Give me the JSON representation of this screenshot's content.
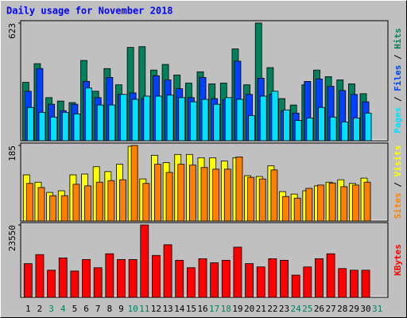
{
  "chart_data": [
    {
      "type": "bar",
      "title": "Daily usage for November 2018",
      "ylim": [
        0,
        623
      ],
      "yticks": [
        623
      ],
      "legend_separator": " / ",
      "series": [
        {
          "name": "Hits",
          "color": "#00805c",
          "values": [
            309,
            408,
            228,
            210,
            202,
            425,
            262,
            382,
            296,
            494,
            498,
            374,
            404,
            348,
            305,
            365,
            301,
            305,
            486,
            296,
            623,
            387,
            223,
            189,
            296,
            374,
            339,
            322,
            301,
            249,
            null
          ]
        },
        {
          "name": "Files",
          "color": "#0040ff",
          "values": [
            262,
            382,
            193,
            159,
            193,
            314,
            228,
            335,
            245,
            253,
            223,
            344,
            322,
            275,
            228,
            335,
            223,
            219,
            421,
            245,
            331,
            245,
            159,
            146,
            314,
            327,
            288,
            266,
            245,
            206,
            null
          ]
        },
        {
          "name": "Pages",
          "color": "#00e0ff",
          "values": [
            176,
            150,
            125,
            150,
            142,
            279,
            189,
            189,
            245,
            219,
            236,
            236,
            241,
            228,
            206,
            219,
            193,
            228,
            219,
            133,
            236,
            262,
            163,
            107,
            120,
            176,
            125,
            99,
            120,
            146,
            null
          ]
        }
      ]
    },
    {
      "type": "bar",
      "ylim": [
        0,
        185
      ],
      "yticks": [
        185
      ],
      "legend_separator": " / ",
      "series": [
        {
          "name": "Visits",
          "color": "#ffff00",
          "values": [
            113,
            95,
            70,
            74,
            113,
            115,
            133,
            121,
            139,
            183,
            103,
            161,
            143,
            163,
            163,
            155,
            155,
            147,
            155,
            111,
            109,
            135,
            72,
            66,
            74,
            86,
            95,
            101,
            92,
            105,
            null
          ]
        },
        {
          "name": "Sites",
          "color": "#ff8000",
          "values": [
            92,
            82,
            62,
            62,
            90,
            86,
            95,
            99,
            101,
            185,
            92,
            139,
            119,
            139,
            137,
            131,
            127,
            127,
            157,
            107,
            103,
            125,
            60,
            56,
            80,
            88,
            93,
            84,
            88,
            95,
            null
          ]
        }
      ]
    },
    {
      "type": "bar",
      "ylim": [
        0,
        23550
      ],
      "yticks": [
        23550
      ],
      "categories": [
        "1",
        "2",
        "3",
        "4",
        "5",
        "6",
        "7",
        "8",
        "9",
        "10",
        "11",
        "12",
        "13",
        "14",
        "15",
        "16",
        "17",
        "18",
        "19",
        "20",
        "21",
        "22",
        "23",
        "24",
        "25",
        "26",
        "27",
        "28",
        "29",
        "30",
        "31"
      ],
      "category_colors": [
        "#000000",
        "#000000",
        "#00805c",
        "#00805c",
        "#000000",
        "#000000",
        "#000000",
        "#000000",
        "#000000",
        "#00805c",
        "#00805c",
        "#000000",
        "#000000",
        "#000000",
        "#000000",
        "#000000",
        "#00805c",
        "#00805c",
        "#000000",
        "#000000",
        "#000000",
        "#000000",
        "#000000",
        "#00805c",
        "#00805c",
        "#000000",
        "#000000",
        "#000000",
        "#000000",
        "#000000",
        "#00805c"
      ],
      "series": [
        {
          "name": "KBytes",
          "color": "#ff0000",
          "values": [
            10970,
            13915,
            8830,
            12845,
            8565,
            12310,
            9635,
            14185,
            12310,
            12310,
            23550,
            13650,
            17125,
            12045,
            9635,
            12580,
            11240,
            12045,
            16325,
            10970,
            9900,
            12580,
            12045,
            7225,
            9900,
            12580,
            14185,
            9365,
            8830,
            8830,
            null
          ]
        }
      ]
    }
  ]
}
